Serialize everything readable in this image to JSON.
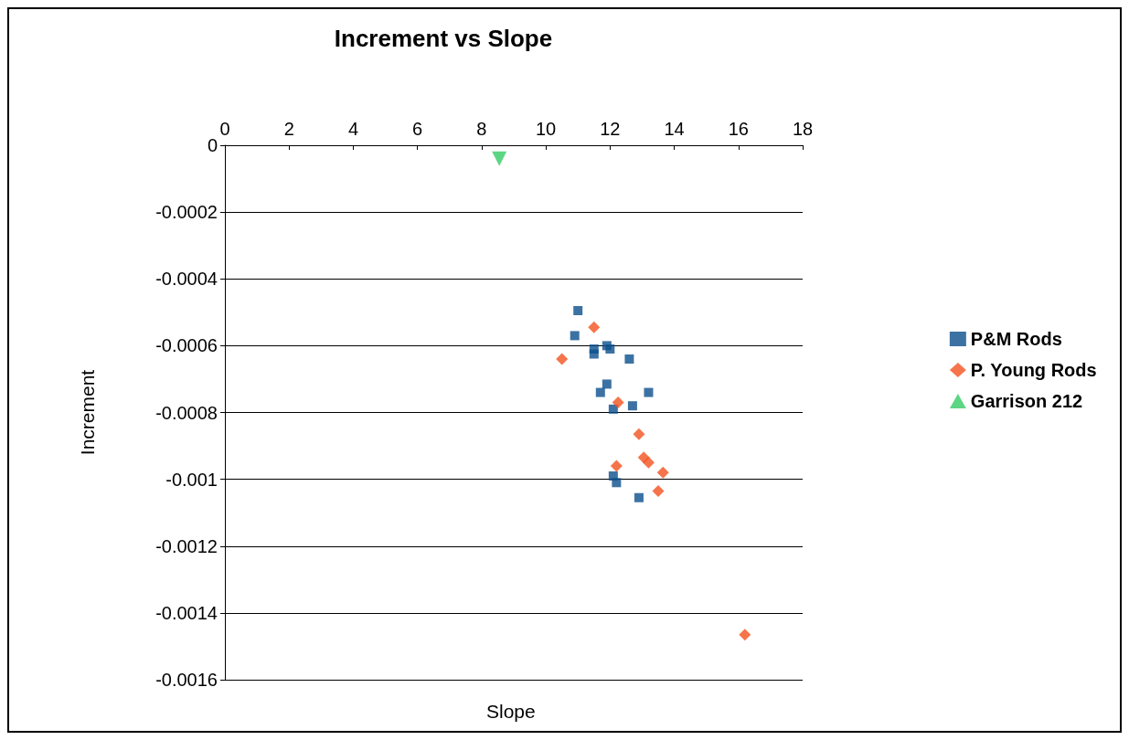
{
  "chart_data": {
    "type": "scatter",
    "title": "Increment vs Slope",
    "xlabel": "Slope",
    "ylabel": "Increment",
    "xlim": [
      0,
      18
    ],
    "xticks": [
      0,
      2,
      4,
      6,
      8,
      10,
      12,
      14,
      16,
      18
    ],
    "ylim": [
      -0.0016,
      0
    ],
    "yticks": [
      -0.0016,
      -0.0014,
      -0.0012,
      -0.001,
      -0.0008,
      -0.0006,
      -0.0004,
      -0.0002,
      0
    ],
    "grid": "y",
    "legend": "right",
    "series": [
      {
        "name": "P&M Rods",
        "color": "#0b4f8c",
        "marker": "square",
        "x": [
          11.0,
          10.9,
          11.5,
          11.5,
          11.9,
          12.0,
          12.6,
          11.9,
          11.7,
          13.2,
          12.1,
          12.7,
          12.1,
          12.2,
          12.9
        ],
        "values": [
          -0.000495,
          -0.00057,
          -0.00061,
          -0.000625,
          -0.0006,
          -0.00061,
          -0.00064,
          -0.000715,
          -0.00074,
          -0.00074,
          -0.00079,
          -0.00078,
          -0.00099,
          -0.00101,
          -0.001055
        ]
      },
      {
        "name": "P. Young Rods",
        "color": "#f4511e",
        "marker": "diamond",
        "x": [
          11.5,
          10.5,
          12.25,
          12.9,
          13.05,
          13.2,
          12.2,
          13.65,
          13.5,
          16.2
        ],
        "values": [
          -0.000545,
          -0.00064,
          -0.00077,
          -0.000865,
          -0.000935,
          -0.00095,
          -0.00096,
          -0.00098,
          -0.001035,
          -0.001465
        ]
      },
      {
        "name": "Garrison 212",
        "color": "#33cc66",
        "marker": "triangle",
        "x": [
          8.55
        ],
        "values": [
          -4e-05
        ]
      }
    ]
  }
}
